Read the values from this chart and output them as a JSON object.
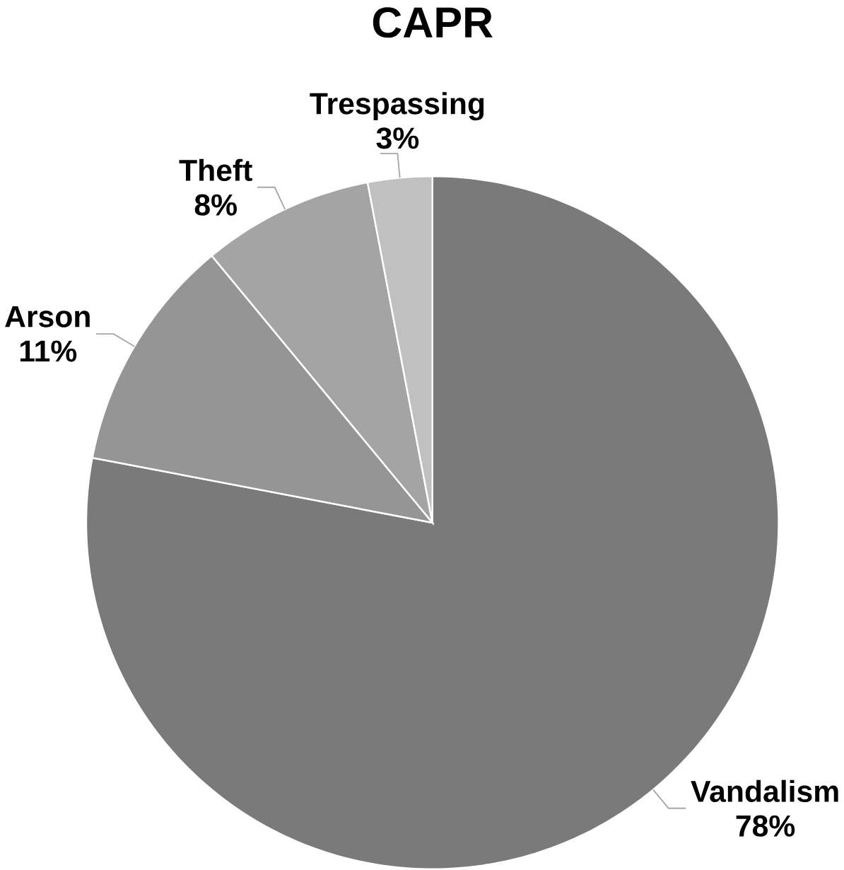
{
  "chart_data": {
    "type": "pie",
    "title": "CAPR",
    "categories": [
      "Vandalism",
      "Arson",
      "Theft",
      "Trespassing"
    ],
    "values": [
      78,
      11,
      8,
      3
    ],
    "colors": [
      "#7a7a7a",
      "#959595",
      "#a4a4a4",
      "#c0c0c0"
    ],
    "value_labels": [
      "78%",
      "11%",
      "8%",
      "3%"
    ]
  }
}
